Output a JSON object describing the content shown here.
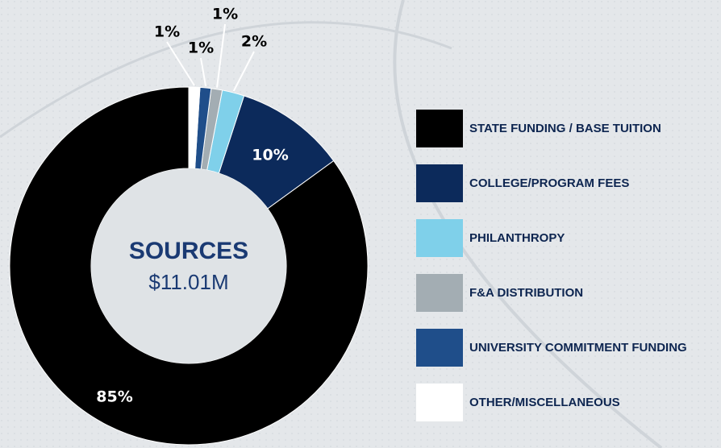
{
  "chart_data": {
    "type": "donut",
    "center_title": "SOURCES",
    "center_value": "$11.01M",
    "categories": [
      "STATE FUNDING / BASE TUITION",
      "COLLEGE/PROGRAM FEES",
      "PHILANTHROPY",
      "F&A DISTRIBUTION",
      "UNIVERSITY COMMITMENT FUNDING",
      "OTHER/MISCELLANEOUS"
    ],
    "values": [
      85,
      10,
      2,
      1,
      1,
      1
    ],
    "value_labels": [
      "85%",
      "10%",
      "2%",
      "1%",
      "1%",
      "1%"
    ],
    "colors": [
      "#000000",
      "#0c2a5b",
      "#7fd0ea",
      "#a3adb3",
      "#1f4e8a",
      "#ffffff"
    ],
    "direction": "counterclockwise",
    "legend": "right"
  }
}
